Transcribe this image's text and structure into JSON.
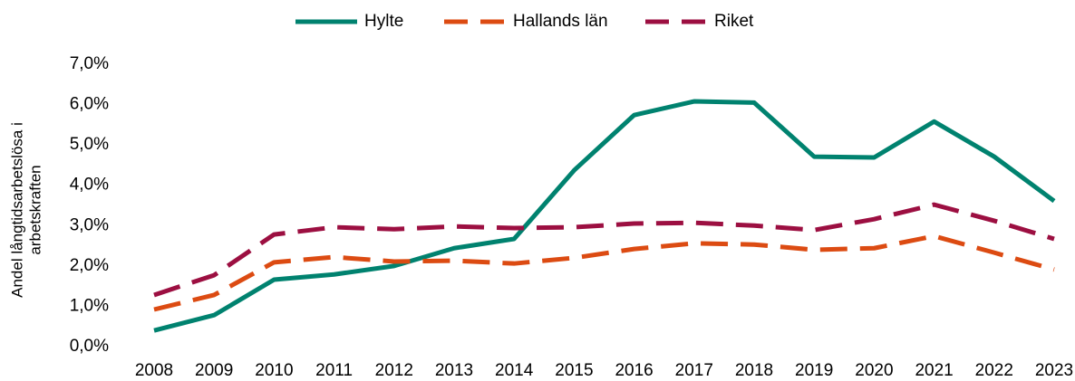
{
  "chart_data": {
    "type": "line",
    "ylabel": [
      "Andel långtidsarbetslösa i",
      "arbetskraften"
    ],
    "categories": [
      "2008",
      "2009",
      "2010",
      "2011",
      "2012",
      "2013",
      "2014",
      "2015",
      "2016",
      "2017",
      "2018",
      "2019",
      "2020",
      "2021",
      "2022",
      "2023"
    ],
    "series": [
      {
        "name": "Hylte",
        "color": "#00826f",
        "dash": "solid",
        "values": [
          0.4,
          0.78,
          1.66,
          1.79,
          2.0,
          2.44,
          2.67,
          4.37,
          5.74,
          6.08,
          6.05,
          4.71,
          4.69,
          5.58,
          4.71,
          3.61
        ]
      },
      {
        "name": "Hallands län",
        "color": "#dc4b12",
        "dash": "dashed",
        "values": [
          0.92,
          1.28,
          2.09,
          2.22,
          2.11,
          2.13,
          2.06,
          2.2,
          2.42,
          2.56,
          2.53,
          2.4,
          2.44,
          2.74,
          2.33,
          1.91
        ]
      },
      {
        "name": "Riket",
        "color": "#9c0f41",
        "dash": "dashed",
        "values": [
          1.28,
          1.77,
          2.78,
          2.96,
          2.91,
          2.98,
          2.94,
          2.96,
          3.05,
          3.07,
          3.0,
          2.89,
          3.16,
          3.52,
          3.12,
          2.67
        ]
      }
    ],
    "ylim": [
      0,
      7
    ],
    "yticks": [
      {
        "value": 0,
        "label": "0,0%"
      },
      {
        "value": 1,
        "label": "1,0%"
      },
      {
        "value": 2,
        "label": "2,0%"
      },
      {
        "value": 3,
        "label": "3,0%"
      },
      {
        "value": 4,
        "label": "4,0%"
      },
      {
        "value": 5,
        "label": "5,0%"
      },
      {
        "value": 6,
        "label": "6,0%"
      },
      {
        "value": 7,
        "label": "7,0%"
      }
    ],
    "grid": false,
    "legend": "top"
  }
}
